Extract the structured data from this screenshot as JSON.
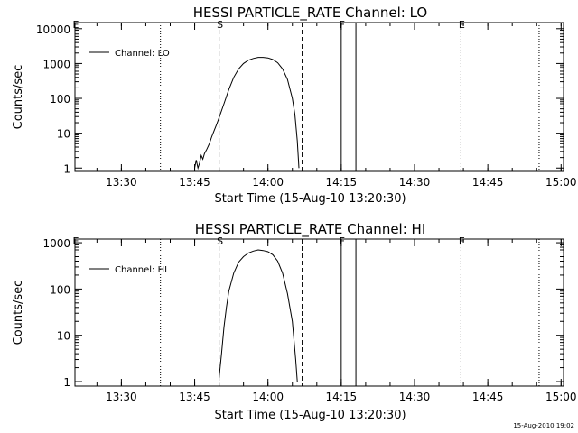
{
  "chart_data": [
    {
      "type": "line",
      "title": "HESSI PARTICLE_RATE Channel: LO",
      "xlabel": "Start Time (15-Aug-10 13:20:30)",
      "ylabel": "Counts/sec",
      "xlim": [
        "13:20:30",
        "15:00:30"
      ],
      "ylim": [
        0.8,
        15000
      ],
      "yscale": "log",
      "xticks": [
        "13:30",
        "13:45",
        "14:00",
        "14:15",
        "14:30",
        "14:45",
        "15:00"
      ],
      "yticks": [
        "1",
        "10",
        "100",
        "1000",
        "10000"
      ],
      "legend": {
        "placement": "top-left",
        "entries": [
          "Channel: LO"
        ]
      },
      "markers": [
        {
          "label": "E",
          "time": "13:20:30",
          "style": "dotted"
        },
        {
          "label": "S",
          "time": "13:50:00",
          "style": "dashed"
        },
        {
          "label": "F",
          "time": "14:15:00",
          "style": "solid"
        },
        {
          "label": "E",
          "time": "14:39:30",
          "style": "dotted"
        }
      ],
      "extra_lines": [
        {
          "time": "13:38:00",
          "style": "dotted"
        },
        {
          "time": "14:07:00",
          "style": "dashed"
        },
        {
          "time": "14:18:00",
          "style": "solid"
        },
        {
          "time": "14:55:30",
          "style": "dotted"
        }
      ],
      "series": [
        {
          "name": "Channel: LO",
          "points": [
            [
              "13:45:00",
              1
            ],
            [
              "13:45:20",
              1.7
            ],
            [
              "13:45:40",
              1
            ],
            [
              "13:46:00",
              1.4
            ],
            [
              "13:46:20",
              2.3
            ],
            [
              "13:46:40",
              1.8
            ],
            [
              "13:47:00",
              2.6
            ],
            [
              "13:47:30",
              3.5
            ],
            [
              "13:48:00",
              5
            ],
            [
              "13:48:30",
              8
            ],
            [
              "13:49:00",
              12
            ],
            [
              "13:49:30",
              18
            ],
            [
              "13:50:00",
              28
            ],
            [
              "13:51:00",
              70
            ],
            [
              "13:52:00",
              180
            ],
            [
              "13:53:00",
              400
            ],
            [
              "13:54:00",
              700
            ],
            [
              "13:55:00",
              1000
            ],
            [
              "13:56:00",
              1250
            ],
            [
              "13:57:00",
              1400
            ],
            [
              "13:58:00",
              1500
            ],
            [
              "13:59:00",
              1500
            ],
            [
              "14:00:00",
              1450
            ],
            [
              "14:01:00",
              1300
            ],
            [
              "14:02:00",
              1050
            ],
            [
              "14:03:00",
              700
            ],
            [
              "14:04:00",
              350
            ],
            [
              "14:05:00",
              100
            ],
            [
              "14:05:30",
              35
            ],
            [
              "14:06:00",
              6
            ],
            [
              "14:06:20",
              1
            ]
          ]
        }
      ]
    },
    {
      "type": "line",
      "title": "HESSI PARTICLE_RATE Channel: HI",
      "xlabel": "Start Time (15-Aug-10 13:20:30)",
      "ylabel": "Counts/sec",
      "xlim": [
        "13:20:30",
        "15:00:30"
      ],
      "ylim": [
        0.8,
        1200
      ],
      "yscale": "log",
      "xticks": [
        "13:30",
        "13:45",
        "14:00",
        "14:15",
        "14:30",
        "14:45",
        "15:00"
      ],
      "yticks": [
        "1",
        "10",
        "100",
        "1000"
      ],
      "legend": {
        "placement": "top-left",
        "entries": [
          "Channel: HI"
        ]
      },
      "markers": [
        {
          "label": "E",
          "time": "13:20:30",
          "style": "dotted"
        },
        {
          "label": "S",
          "time": "13:50:00",
          "style": "dashed"
        },
        {
          "label": "F",
          "time": "14:15:00",
          "style": "solid"
        },
        {
          "label": "E",
          "time": "14:39:30",
          "style": "dotted"
        }
      ],
      "extra_lines": [
        {
          "time": "13:38:00",
          "style": "dotted"
        },
        {
          "time": "14:07:00",
          "style": "dashed"
        },
        {
          "time": "14:18:00",
          "style": "solid"
        },
        {
          "time": "14:55:30",
          "style": "dotted"
        }
      ],
      "series": [
        {
          "name": "Channel: HI",
          "points": [
            [
              "13:50:00",
              1.2
            ],
            [
              "13:50:30",
              4
            ],
            [
              "13:51:00",
              15
            ],
            [
              "13:51:30",
              40
            ],
            [
              "13:52:00",
              90
            ],
            [
              "13:53:00",
              220
            ],
            [
              "13:54:00",
              380
            ],
            [
              "13:55:00",
              500
            ],
            [
              "13:56:00",
              600
            ],
            [
              "13:57:00",
              660
            ],
            [
              "13:58:00",
              700
            ],
            [
              "13:59:00",
              680
            ],
            [
              "14:00:00",
              640
            ],
            [
              "14:01:00",
              550
            ],
            [
              "14:02:00",
              400
            ],
            [
              "14:03:00",
              220
            ],
            [
              "14:04:00",
              80
            ],
            [
              "14:05:00",
              20
            ],
            [
              "14:05:40",
              3
            ],
            [
              "14:06:00",
              1
            ]
          ]
        }
      ]
    }
  ],
  "footer": {
    "timestamp": "15-Aug-2010 19:02"
  }
}
